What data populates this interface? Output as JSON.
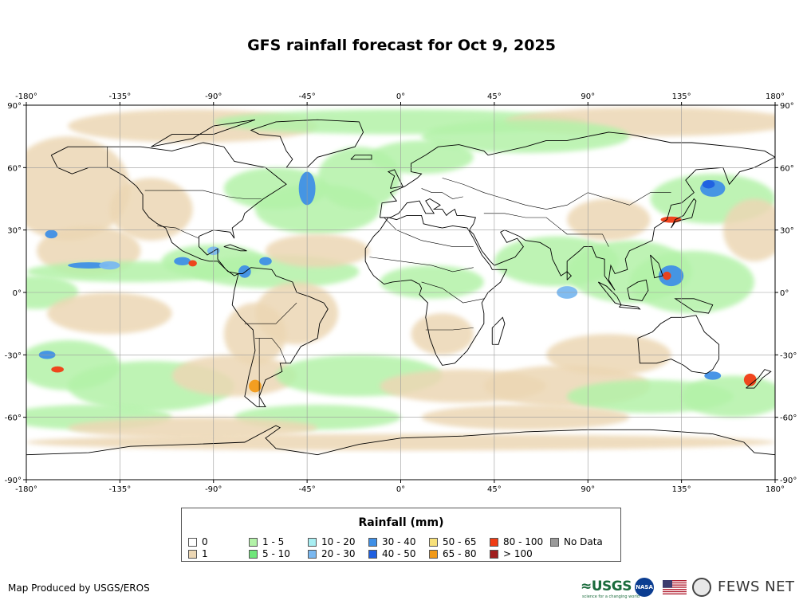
{
  "title": "GFS rainfall forecast for Oct 9, 2025",
  "map": {
    "lon_ticks": [
      "-180°",
      "-135°",
      "-90°",
      "-45°",
      "0°",
      "45°",
      "90°",
      "135°",
      "180°"
    ],
    "lat_ticks": [
      "90°",
      "60°",
      "30°",
      "0°",
      "-30°",
      "-60°",
      "-90°"
    ],
    "lon_range": [
      -180,
      180
    ],
    "lat_range": [
      -90,
      90
    ],
    "projection": "equirectangular",
    "grid": true
  },
  "legend": {
    "title": "Rainfall (mm)",
    "items": [
      {
        "label": "0",
        "color": "#ffffff"
      },
      {
        "label": "1",
        "color": "#ecd7b4"
      },
      {
        "label": "1 - 5",
        "color": "#b3f2a8"
      },
      {
        "label": "5 - 10",
        "color": "#6fe67a"
      },
      {
        "label": "10 - 20",
        "color": "#a8eef2"
      },
      {
        "label": "20 - 30",
        "color": "#7ab8f0"
      },
      {
        "label": "30 - 40",
        "color": "#3f8fe6"
      },
      {
        "label": "40 - 50",
        "color": "#1f5fe0"
      },
      {
        "label": "50 - 65",
        "color": "#f7e07a"
      },
      {
        "label": "65 - 80",
        "color": "#f29a18"
      },
      {
        "label": "80 - 100",
        "color": "#f03c14"
      },
      {
        "label": "> 100",
        "color": "#a01e1e"
      },
      {
        "label": "No Data",
        "color": "#9a9a9a"
      }
    ]
  },
  "credit": "Map Produced by USGS/EROS",
  "logos": {
    "usgs": "≈USGS",
    "usgs_tagline": "science for a changing world",
    "nasa": "NASA",
    "fews": "FEWS NET"
  }
}
